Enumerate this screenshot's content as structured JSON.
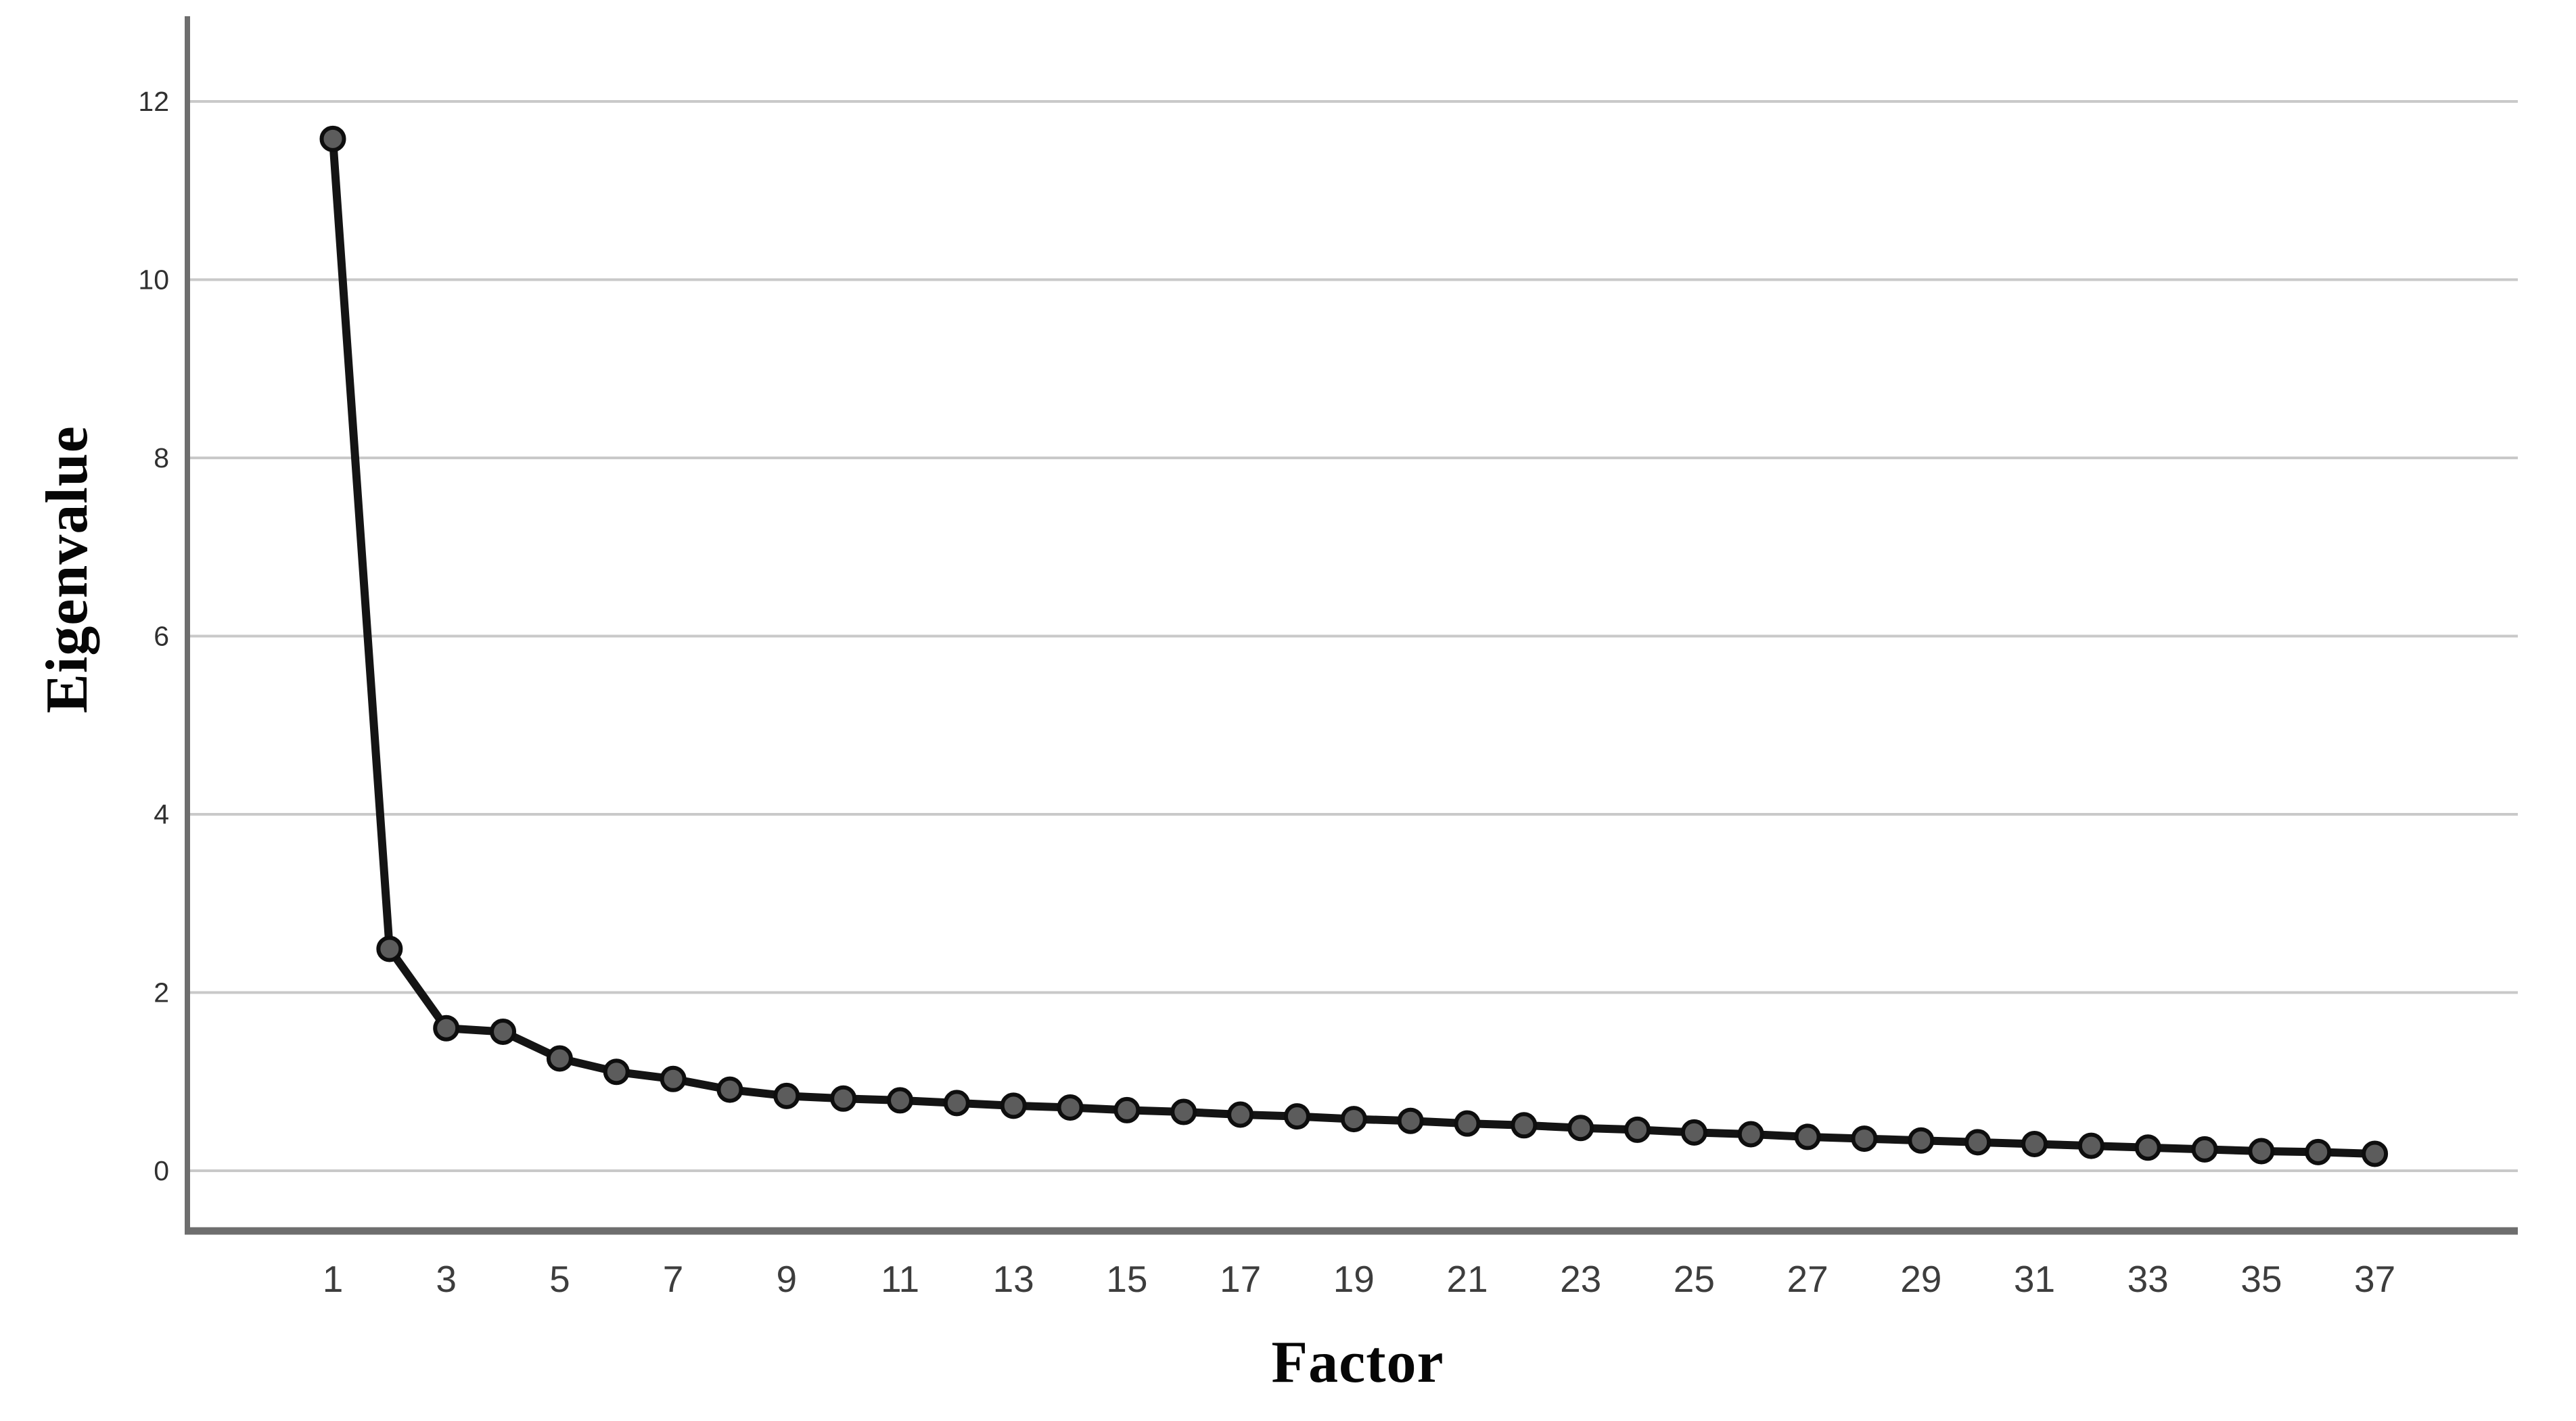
{
  "chart_data": {
    "type": "line",
    "title": "",
    "xlabel": "Factor",
    "ylabel": "Eigenvalue",
    "x": [
      1,
      2,
      3,
      4,
      5,
      6,
      7,
      8,
      9,
      10,
      11,
      12,
      13,
      14,
      15,
      16,
      17,
      18,
      19,
      20,
      21,
      22,
      23,
      24,
      25,
      26,
      27,
      28,
      29,
      30,
      31,
      32,
      33,
      34,
      35,
      36,
      37
    ],
    "values": [
      11.58,
      2.49,
      1.6,
      1.56,
      1.26,
      1.11,
      1.03,
      0.91,
      0.84,
      0.81,
      0.79,
      0.76,
      0.73,
      0.71,
      0.68,
      0.66,
      0.63,
      0.61,
      0.58,
      0.56,
      0.53,
      0.51,
      0.48,
      0.46,
      0.43,
      0.41,
      0.38,
      0.36,
      0.34,
      0.32,
      0.3,
      0.28,
      0.26,
      0.24,
      0.22,
      0.21,
      0.19
    ],
    "x_tick_labels": [
      "1",
      "3",
      "5",
      "7",
      "9",
      "11",
      "13",
      "15",
      "17",
      "19",
      "21",
      "23",
      "25",
      "27",
      "29",
      "31",
      "33",
      "35",
      "37"
    ],
    "x_tick_values": [
      1,
      3,
      5,
      7,
      9,
      11,
      13,
      15,
      17,
      19,
      21,
      23,
      25,
      27,
      29,
      31,
      33,
      35,
      37
    ],
    "y_tick_labels": [
      "0",
      "2",
      "4",
      "6",
      "8",
      "10",
      "12"
    ],
    "y_tick_values": [
      0,
      2,
      4,
      6,
      8,
      10,
      12
    ],
    "ylim": [
      -0.68,
      12.95
    ],
    "grid": "horizontal",
    "legend": "none",
    "marker": "circle",
    "colors": {
      "line": "#141414",
      "marker_fill": "#5c5c5c",
      "marker_stroke": "#0e0e0e",
      "gridline": "#c9c9c9",
      "axis": "#6e6e6e",
      "y_tick_text": "#303030",
      "x_tick_text": "#3d3d3d",
      "title_text": "#060606",
      "background": "#ffffff"
    }
  }
}
